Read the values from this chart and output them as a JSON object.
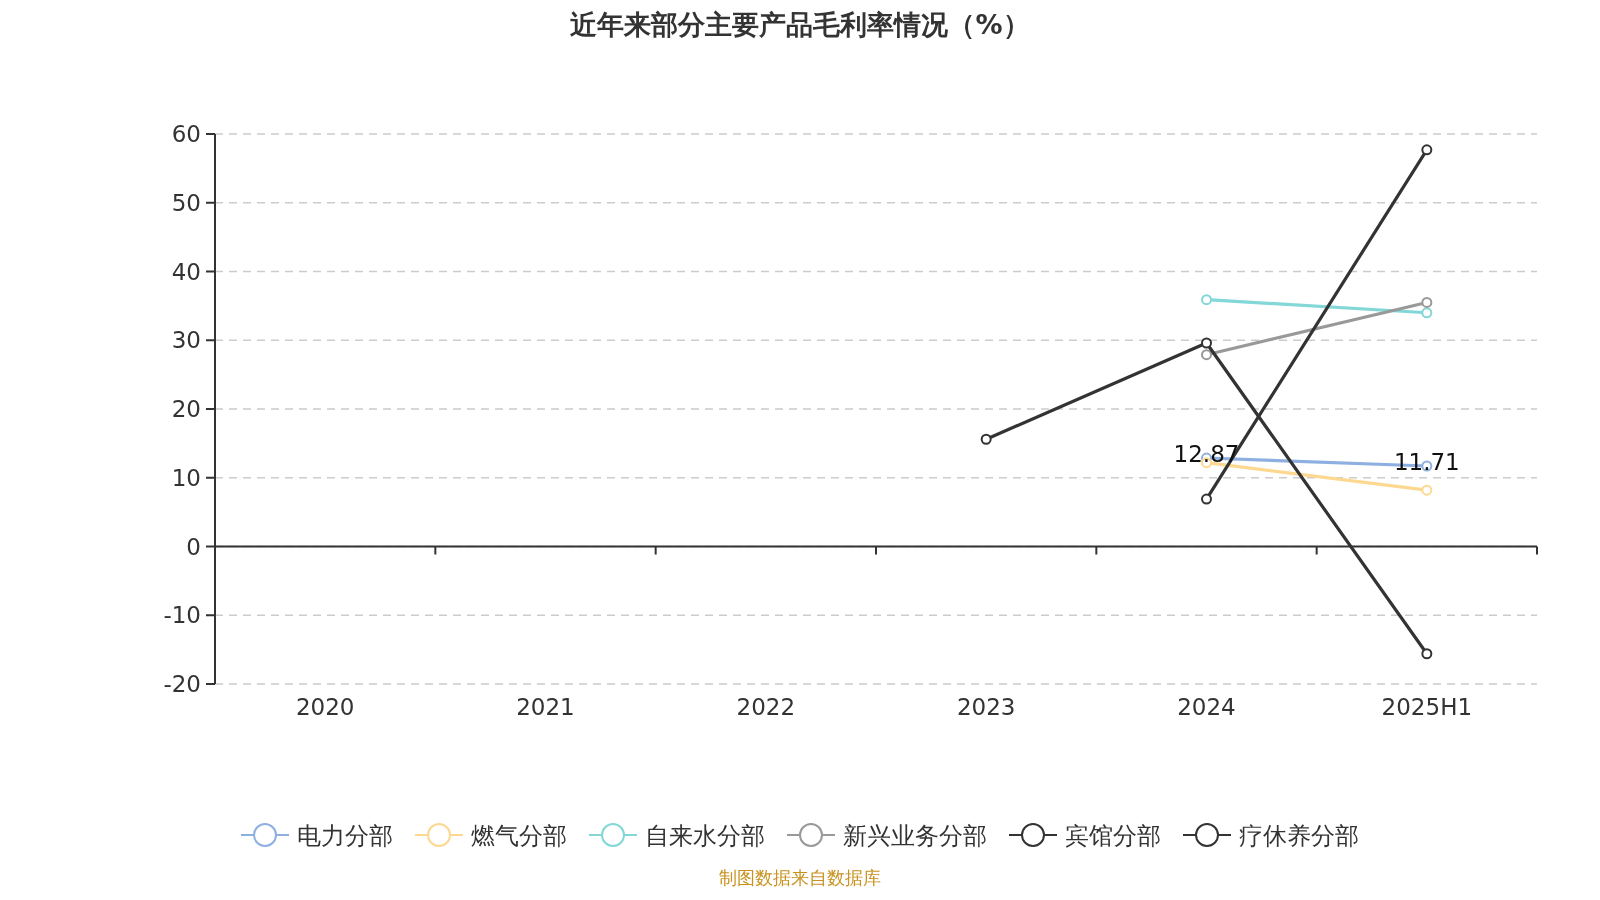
{
  "chart_data": {
    "type": "line",
    "title": "近年来部分主要产品毛利率情况（%）",
    "categories": [
      "2020",
      "2021",
      "2022",
      "2023",
      "2024",
      "2025H1"
    ],
    "series": [
      {
        "name": "电力分部",
        "color": "#8eb0e0",
        "values": [
          null,
          null,
          null,
          null,
          12.87,
          11.71
        ],
        "value_labels": [
          null,
          null,
          null,
          null,
          "12.87",
          "11.71"
        ]
      },
      {
        "name": "燃气分部",
        "color": "#fdd890",
        "values": [
          null,
          null,
          null,
          null,
          12.2,
          8.2
        ]
      },
      {
        "name": "自来水分部",
        "color": "#83d7d7",
        "values": [
          null,
          null,
          null,
          null,
          35.9,
          34.0
        ]
      },
      {
        "name": "新兴业务分部",
        "color": "#999999",
        "values": [
          null,
          null,
          null,
          null,
          27.9,
          35.5
        ]
      },
      {
        "name": "宾馆分部",
        "color": "#333333",
        "values": [
          null,
          null,
          null,
          15.6,
          29.6,
          -15.6
        ]
      },
      {
        "name": "疗休养分部",
        "color": "#333333",
        "values": [
          null,
          null,
          null,
          null,
          6.9,
          57.7
        ]
      }
    ],
    "ylim": [
      -20,
      60
    ],
    "yticks": [
      -20,
      -10,
      0,
      10,
      20,
      30,
      40,
      50,
      60
    ],
    "grid": "y",
    "legend": "bottom",
    "marker": "circle",
    "line_style": "solid",
    "annotations": [
      "制图数据来自数据库"
    ]
  }
}
